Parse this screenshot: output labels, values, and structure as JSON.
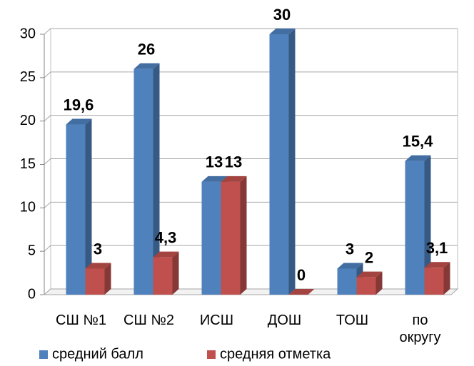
{
  "chart_data": {
    "type": "bar3d",
    "categories": [
      "СШ №1",
      "СШ №2",
      "ИСШ",
      "ДОШ",
      "ТОШ",
      "по округу"
    ],
    "series": [
      {
        "name": "средний балл",
        "color": "#4f81bd",
        "values": [
          19.6,
          26,
          13,
          30,
          3,
          15.4
        ],
        "value_labels": [
          "19,6",
          "26",
          "13",
          "30",
          "3",
          "15,4"
        ]
      },
      {
        "name": "средняя отметка",
        "color": "#c0504d",
        "values": [
          3,
          4.3,
          13,
          0,
          2,
          3.1
        ],
        "value_labels": [
          "3",
          "4,3",
          "13",
          "0",
          "2",
          "3,1"
        ]
      }
    ],
    "ylim": [
      0,
      30
    ],
    "yticks": [
      0,
      5,
      10,
      15,
      20,
      25,
      30
    ],
    "grid": true,
    "legend": "bottom"
  }
}
